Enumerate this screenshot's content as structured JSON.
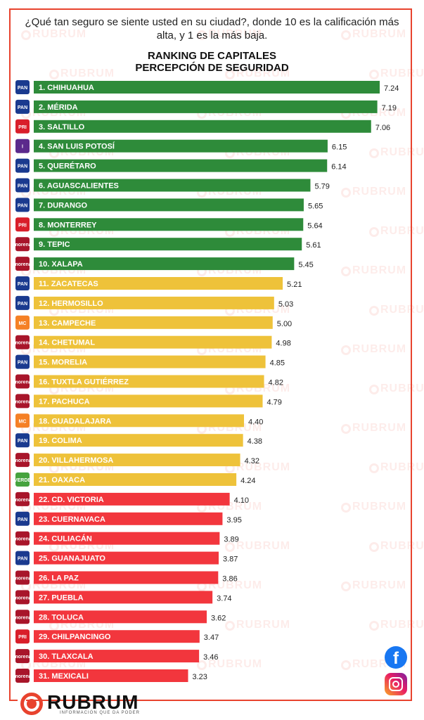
{
  "question": "¿Qué tan seguro se siente usted en su ciudad?, donde 10 es la calificación más alta, y  1 es la más baja.",
  "watermark": "RUBRUM",
  "brand": {
    "name": "RUBRUM",
    "tagline": "INFORMACIÓN QUE DA PODER"
  },
  "social": [
    "facebook-icon",
    "instagram-icon"
  ],
  "colors": {
    "high": "#2e8b3a",
    "mid": "#eec23a",
    "low": "#f2363d",
    "frame": "#e8432e"
  },
  "party_colors": {
    "PAN": "#1a3a8f",
    "PRI": "#d91e2a",
    "MORENA": "#a8152a",
    "MC": "#f58025",
    "PVEM": "#46a33e",
    "NA": "#5b2a8c"
  },
  "chart_data": {
    "type": "bar",
    "orientation": "horizontal",
    "title": "RANKING DE CAPITALES\nPERCEPCIÓN DE SEGURIDAD",
    "xlabel": "",
    "ylabel": "",
    "grid": false,
    "categories": [
      "1. CHIHUAHUA",
      "2. MÉRIDA",
      "3. SALTILLO",
      "4. SAN LUIS POTOSÍ",
      "5. QUERÉTARO",
      "6. AGUASCALIENTES",
      "7. DURANGO",
      "8. MONTERREY",
      "9. TEPIC",
      "10. XALAPA",
      "11. ZACATECAS",
      "12. HERMOSILLO",
      "13. CAMPECHE",
      "14. CHETUMAL",
      "15. MORELIA",
      "16. TUXTLA GUTIÉRREZ",
      "17. PACHUCA",
      "18. GUADALAJARA",
      "19. COLIMA",
      "20. VILLAHERMOSA",
      "21. OAXACA",
      "22. CD. VICTORIA",
      "23. CUERNAVACA",
      "24. CULIACÁN",
      "25. GUANAJUATO",
      "26. LA PAZ",
      "27. PUEBLA",
      "28. TOLUCA",
      "29. CHILPANCINGO",
      "30. TLAXCALA",
      "31. MEXICALI"
    ],
    "values": [
      7.24,
      7.19,
      7.06,
      6.15,
      6.14,
      5.79,
      5.65,
      5.64,
      5.61,
      5.45,
      5.21,
      5.03,
      5.0,
      4.98,
      4.85,
      4.82,
      4.79,
      4.4,
      4.38,
      4.32,
      4.24,
      4.1,
      3.95,
      3.89,
      3.87,
      3.86,
      3.74,
      3.62,
      3.47,
      3.46,
      3.23
    ],
    "value_labels": [
      "7.24",
      "7.19",
      "7.06",
      "6.15",
      "6.14",
      "5.79",
      "5.65",
      "5.64",
      "5.61",
      "5.45",
      "5.21",
      "5.03",
      "5.00",
      "4.98",
      "4.85",
      "4.82",
      "4.79",
      "4.40",
      "4.38",
      "4.32",
      "4.24",
      "4.10",
      "3.95",
      "3.89",
      "3.87",
      "3.86",
      "3.74",
      "3.62",
      "3.47",
      "3.46",
      "3.23"
    ],
    "tiers": [
      "high",
      "high",
      "high",
      "high",
      "high",
      "high",
      "high",
      "high",
      "high",
      "high",
      "mid",
      "mid",
      "mid",
      "mid",
      "mid",
      "mid",
      "mid",
      "mid",
      "mid",
      "mid",
      "mid",
      "low",
      "low",
      "low",
      "low",
      "low",
      "low",
      "low",
      "low",
      "low",
      "low"
    ],
    "parties": [
      "PAN",
      "PAN",
      "PRI",
      "NA",
      "PAN",
      "PAN",
      "PAN",
      "PRI",
      "MORENA",
      "MORENA",
      "PAN",
      "PAN",
      "MC",
      "MORENA",
      "PAN",
      "MORENA",
      "MORENA",
      "MC",
      "PAN",
      "MORENA",
      "PVEM",
      "MORENA",
      "PAN",
      "MORENA",
      "PAN",
      "MORENA",
      "MORENA",
      "MORENA",
      "PRI",
      "MORENA",
      "MORENA"
    ],
    "party_logo_text": {
      "PAN": "PAN",
      "PRI": "PRI",
      "MORENA": "morena",
      "MC": "MC",
      "PVEM": "VERDE",
      "NA": "I"
    },
    "xlim": [
      0,
      7.24
    ]
  }
}
